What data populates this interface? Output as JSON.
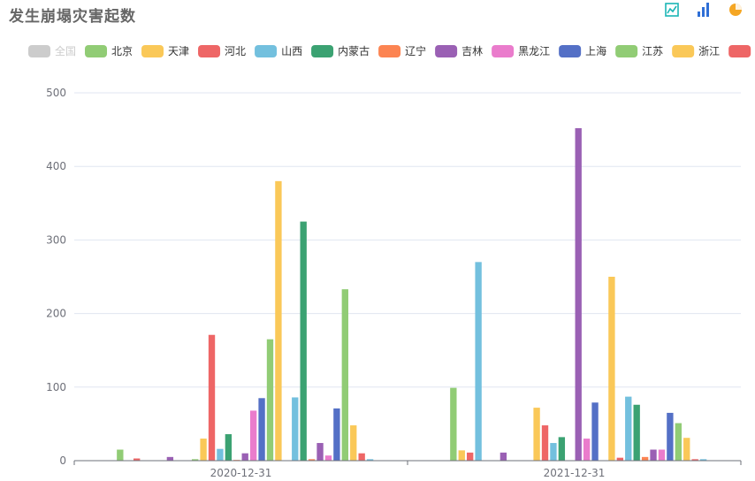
{
  "title": "发生崩塌灾害起数",
  "toolbox": [
    {
      "icon": "line-chart-icon",
      "color": "#1bb5b5"
    },
    {
      "icon": "bar-chart-icon",
      "color": "#2f6fd6"
    },
    {
      "icon": "pie-chart-icon",
      "color": "#f5a623"
    }
  ],
  "chart_data": {
    "type": "bar",
    "title": "发生崩塌灾害起数",
    "categories": [
      "2020-12-31",
      "2021-12-31"
    ],
    "ylim": [
      0,
      500
    ],
    "yticks": [
      0,
      100,
      200,
      300,
      400,
      500
    ],
    "grid": true,
    "legend_position": "top",
    "series": [
      {
        "name": "全国",
        "color": "#cccccc",
        "disabled": true,
        "values": [
          null,
          null
        ]
      },
      {
        "name": "北京",
        "color": "#91cc75",
        "values": [
          15,
          99
        ]
      },
      {
        "name": "天津",
        "color": "#fac858",
        "values": [
          0,
          14
        ]
      },
      {
        "name": "河北",
        "color": "#ee6666",
        "values": [
          3,
          11
        ]
      },
      {
        "name": "山西",
        "color": "#73c0de",
        "values": [
          0,
          270
        ]
      },
      {
        "name": "内蒙古",
        "color": "#3ba272",
        "values": [
          0,
          0
        ]
      },
      {
        "name": "辽宁",
        "color": "#fc8452",
        "values": [
          0,
          0
        ]
      },
      {
        "name": "吉林",
        "color": "#9a60b4",
        "values": [
          5,
          11
        ]
      },
      {
        "name": "黑龙江",
        "color": "#ea7ccc",
        "values": [
          0,
          0
        ]
      },
      {
        "name": "上海",
        "color": "#5470c6",
        "values": [
          0,
          0
        ]
      },
      {
        "name": "江苏",
        "color": "#91cc75",
        "values": [
          2,
          0
        ]
      },
      {
        "name": "浙江",
        "color": "#fac858",
        "values": [
          30,
          72
        ]
      },
      {
        "name": "",
        "color": "#ee6666",
        "values": [
          171,
          48
        ]
      },
      {
        "name": "",
        "color": "#73c0de",
        "values": [
          16,
          24
        ]
      },
      {
        "name": "",
        "color": "#3ba272",
        "values": [
          36,
          32
        ]
      },
      {
        "name": "",
        "color": "#fc8452",
        "values": [
          1,
          0
        ]
      },
      {
        "name": "",
        "color": "#9a60b4",
        "values": [
          10,
          452
        ]
      },
      {
        "name": "",
        "color": "#ea7ccc",
        "values": [
          68,
          30
        ]
      },
      {
        "name": "",
        "color": "#5470c6",
        "values": [
          85,
          79
        ]
      },
      {
        "name": "",
        "color": "#91cc75",
        "values": [
          165,
          0
        ]
      },
      {
        "name": "",
        "color": "#fac858",
        "values": [
          380,
          250
        ]
      },
      {
        "name": "",
        "color": "#ee6666",
        "values": [
          0,
          4
        ]
      },
      {
        "name": "",
        "color": "#73c0de",
        "values": [
          86,
          87
        ]
      },
      {
        "name": "",
        "color": "#3ba272",
        "values": [
          325,
          76
        ]
      },
      {
        "name": "",
        "color": "#fc8452",
        "values": [
          2,
          5
        ]
      },
      {
        "name": "",
        "color": "#9a60b4",
        "values": [
          24,
          15
        ]
      },
      {
        "name": "",
        "color": "#ea7ccc",
        "values": [
          7,
          15
        ]
      },
      {
        "name": "",
        "color": "#5470c6",
        "values": [
          71,
          65
        ]
      },
      {
        "name": "",
        "color": "#91cc75",
        "values": [
          233,
          51
        ]
      },
      {
        "name": "",
        "color": "#fac858",
        "values": [
          48,
          31
        ]
      },
      {
        "name": "",
        "color": "#ee6666",
        "values": [
          10,
          2
        ]
      },
      {
        "name": "",
        "color": "#73c0de",
        "values": [
          2,
          2
        ]
      }
    ]
  }
}
